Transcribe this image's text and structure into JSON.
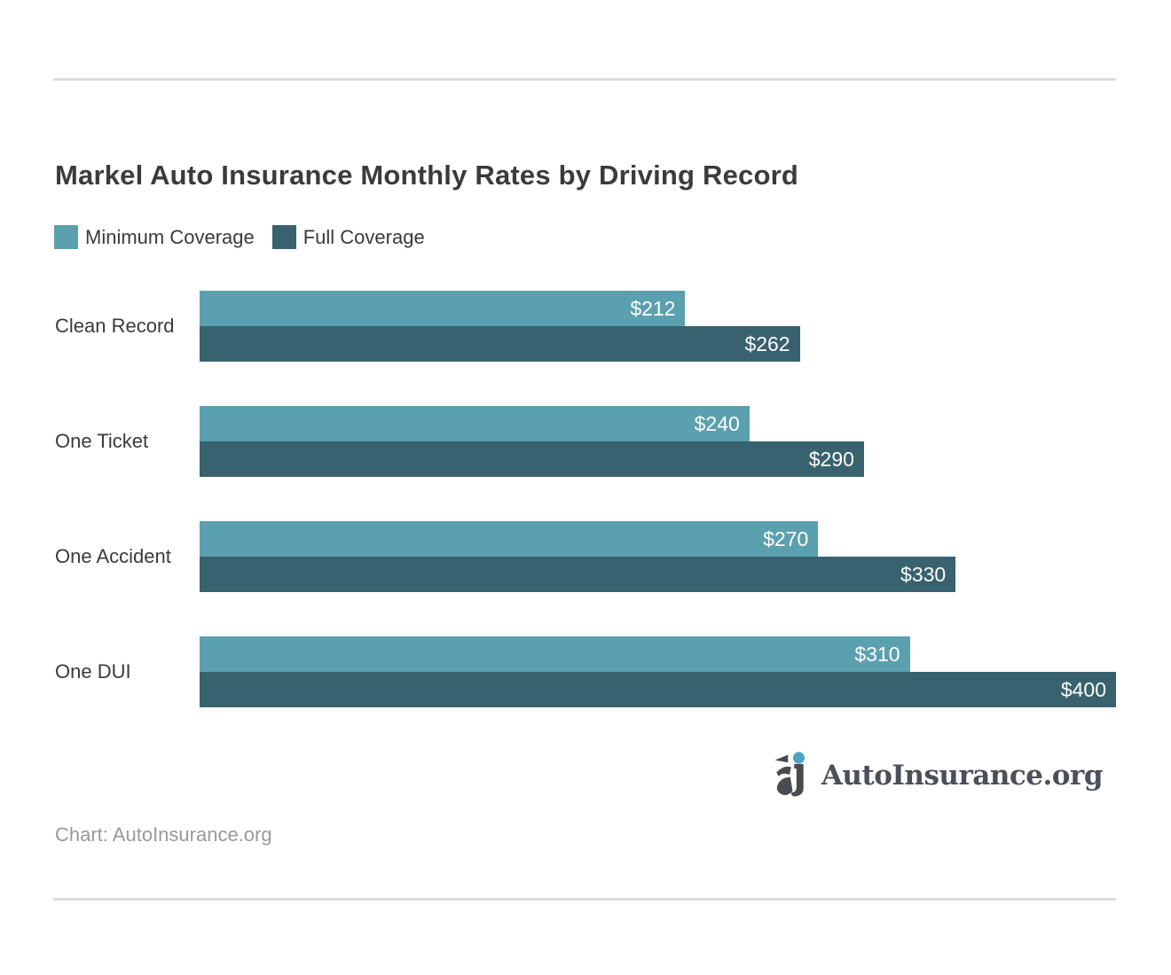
{
  "page": {
    "title": "Markel Auto Insurance Monthly Rates by Driving Record",
    "source_note": "Chart: AutoInsurance.org",
    "brand_name": "AutoInsurance.org"
  },
  "colors": {
    "minimum_coverage": "#5ba0ae",
    "full_coverage": "#38626d",
    "title_text": "#3b3b3b",
    "divider": "#dcdcdc",
    "note_text": "#9a9a9a",
    "logo_text": "#4a4f58",
    "logo_dot": "#4da4c4",
    "logo_mark": "#4a4b50",
    "bar_value_text": "#ffffff"
  },
  "chart_data": {
    "type": "bar",
    "orientation": "horizontal",
    "title": "Markel Auto Insurance Monthly Rates by Driving Record",
    "categories": [
      "Clean Record",
      "One Ticket",
      "One Accident",
      "One DUI"
    ],
    "series": [
      {
        "name": "Minimum Coverage",
        "color": "#5ba0ae",
        "values": [
          212,
          240,
          270,
          310
        ],
        "labels": [
          "$212",
          "$240",
          "$270",
          "$310"
        ]
      },
      {
        "name": "Full Coverage",
        "color": "#38626d",
        "values": [
          262,
          290,
          330,
          400
        ],
        "labels": [
          "$262",
          "$290",
          "$330",
          "$400"
        ]
      }
    ],
    "xlim": [
      0,
      400
    ],
    "value_prefix": "$",
    "grid": false,
    "axis_ticks_visible": false,
    "legend_position": "top-left",
    "value_labels_position": "inside-end"
  }
}
